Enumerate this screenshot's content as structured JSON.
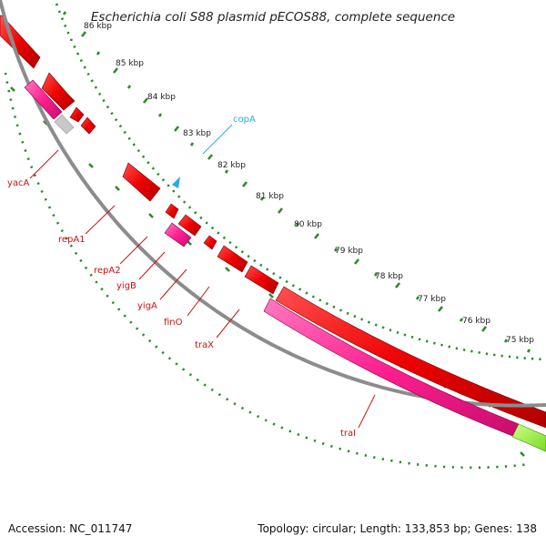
{
  "title": "Escherichia coli S88 plasmid pECOS88, complete sequence",
  "footer": {
    "accession": "Accession: NC_011747",
    "summary": "Topology: circular; Length: 133,853 bp; Genes: 138"
  },
  "scale": {
    "unit": "kbp",
    "tick_labels": [
      "86 kbp",
      "85 kbp",
      "84 kbp",
      "83 kbp",
      "82 kbp",
      "81 kbp",
      "80 kbp",
      "79 kbp",
      "78 kbp",
      "77 kbp",
      "76 kbp",
      "75 kbp"
    ]
  },
  "colors": {
    "backbone": "#8c8c8c",
    "forward_gene": "#ee0000",
    "reverse_gene": "#ff1f8f",
    "hypothetical": "#c8c8c8",
    "other_feature": "#99ff33",
    "replication_origin": "#29a9e6",
    "gene_label": "#cc1010",
    "tick_marks": "#2a8a2a"
  },
  "gene_labels": [
    "yacA",
    "repA1",
    "repA2",
    "yigB",
    "yigA",
    "finO",
    "traX",
    "traI"
  ],
  "feature_labels": [
    "copA"
  ]
}
